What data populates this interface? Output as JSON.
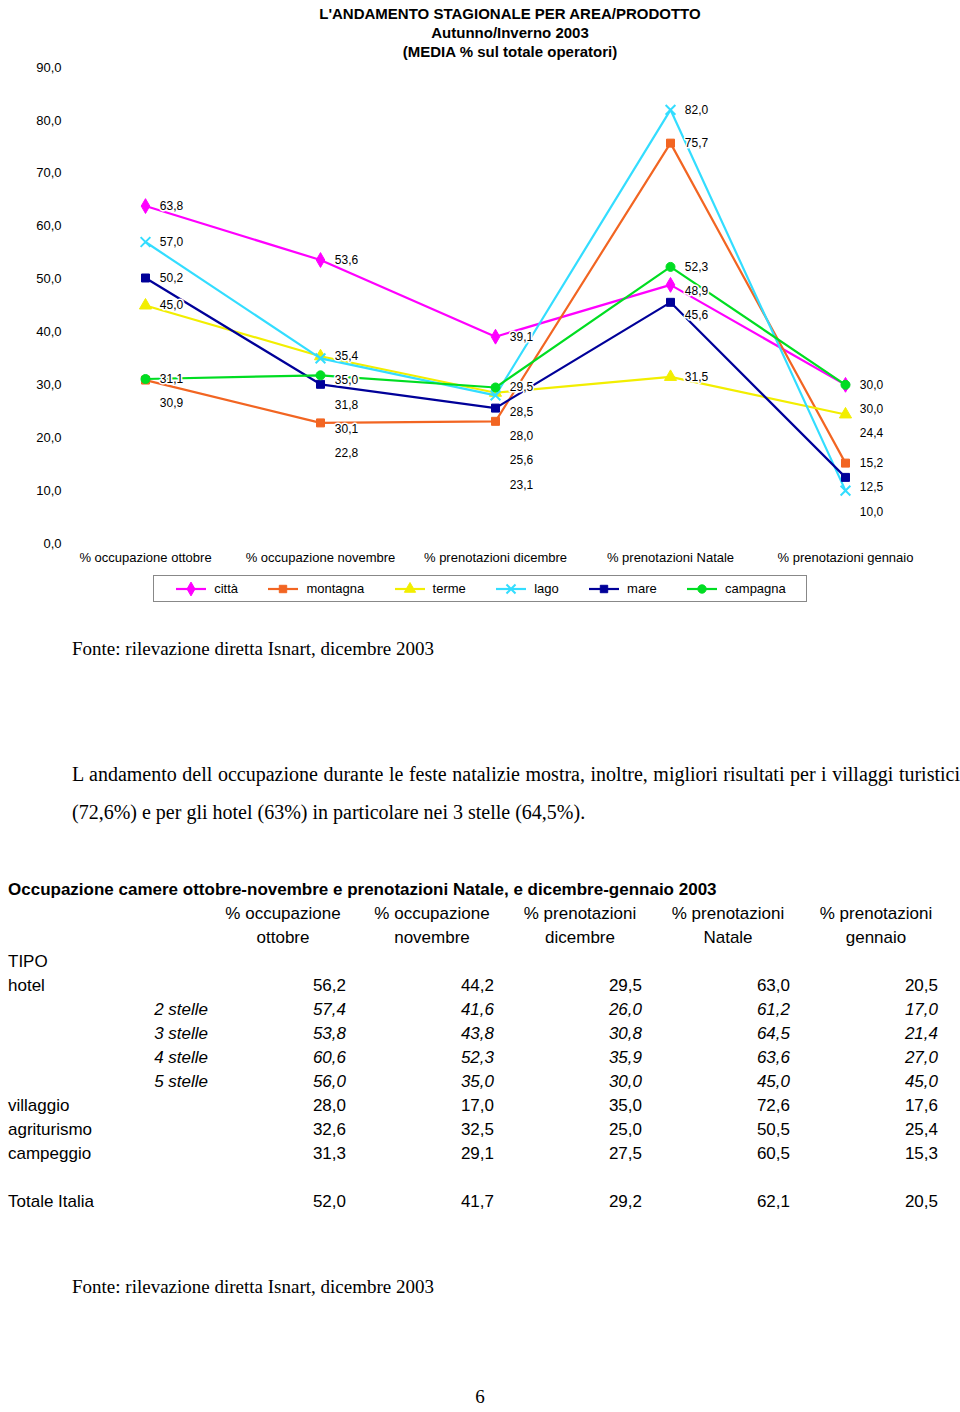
{
  "chart_data": {
    "type": "line",
    "title": "L'ANDAMENTO STAGIONALE PER AREA/PRODOTTO",
    "subtitle": [
      "Autunno/Inverno 2003",
      "(MEDIA % sul totale operatori)"
    ],
    "categories": [
      "% occupazione ottobre",
      "% occupazione novembre",
      "% prenotazioni dicembre",
      "% prenotazioni Natale",
      "% prenotazioni gennaio"
    ],
    "series": [
      {
        "name": "città",
        "color": "#ff00ff",
        "marker": "diamond",
        "values": [
          63.8,
          53.6,
          39.1,
          48.9,
          30.0
        ],
        "value_labels": [
          "63,8",
          "53,6",
          "39,1",
          "48,9",
          "30,0"
        ]
      },
      {
        "name": "montagna",
        "color": "#f26522",
        "marker": "square",
        "values": [
          30.9,
          22.8,
          23.1,
          75.7,
          15.2
        ],
        "value_labels": [
          "30,9",
          "22,8",
          "23,1",
          "75,7",
          "15,2"
        ]
      },
      {
        "name": "terme",
        "color": "#f2ee00",
        "marker": "triangle",
        "values": [
          45.0,
          35.4,
          28.5,
          31.5,
          24.4
        ],
        "value_labels": [
          "45,0",
          "35,4",
          "28,5",
          "31,5",
          "24,4"
        ]
      },
      {
        "name": "lago",
        "color": "#33ddff",
        "marker": "x",
        "values": [
          57.0,
          35.0,
          28.0,
          82.0,
          10.0
        ],
        "value_labels": [
          "57,0",
          "35,0",
          "28,0",
          "82,0",
          "10,0"
        ]
      },
      {
        "name": "mare",
        "color": "#000099",
        "marker": "square",
        "values": [
          50.2,
          30.1,
          25.6,
          45.6,
          12.5
        ],
        "value_labels": [
          "50,2",
          "30,1",
          "25,6",
          "45,6",
          "12,5"
        ]
      },
      {
        "name": "campagna",
        "color": "#00dd22",
        "marker": "circle",
        "values": [
          31.1,
          31.8,
          29.5,
          52.3,
          30.0
        ],
        "value_labels": [
          "31,1",
          "31,8",
          "29,5",
          "52,3",
          "30,0"
        ]
      }
    ],
    "ylim": [
      0,
      90
    ],
    "yticks": [
      {
        "value": 0,
        "label": "0,0"
      },
      {
        "value": 10,
        "label": "10,0"
      },
      {
        "value": 20,
        "label": "20,0"
      },
      {
        "value": 30,
        "label": "30,0"
      },
      {
        "value": 40,
        "label": "40,0"
      },
      {
        "value": 50,
        "label": "50,0"
      },
      {
        "value": 60,
        "label": "60,0"
      },
      {
        "value": 70,
        "label": "70,0"
      },
      {
        "value": 80,
        "label": "80,0"
      },
      {
        "value": 90,
        "label": "90,0"
      }
    ],
    "grid": false,
    "legend": "bottom",
    "data_labels": true
  },
  "document": {
    "chart_source": "Fonte: rilevazione diretta Isnart, dicembre 2003",
    "paragraph": "L andamento dell occupazione durante le feste natalizie mostra, inoltre, migliori risultati per i villaggi turistici (72,6%) e per gli hotel (63%) in particolare nei 3 stelle (64,5%).",
    "table": {
      "title": "Occupazione camere ottobre-novembre e prenotazioni Natale, e dicembre-gennaio 2003",
      "columns": [
        [
          "% occupazione",
          "ottobre"
        ],
        [
          "% occupazione",
          "novembre"
        ],
        [
          "% prenotazioni",
          "dicembre"
        ],
        [
          "% prenotazioni",
          "Natale"
        ],
        [
          "% prenotazioni",
          "gennaio"
        ]
      ],
      "stub_header": "TIPO",
      "rows": [
        {
          "label": "hotel",
          "values": [
            "56,2",
            "44,2",
            "29,5",
            "63,0",
            "20,5"
          ]
        },
        {
          "label": "2 stelle",
          "sub": true,
          "values": [
            "57,4",
            "41,6",
            "26,0",
            "61,2",
            "17,0"
          ]
        },
        {
          "label": "3 stelle",
          "sub": true,
          "values": [
            "53,8",
            "43,8",
            "30,8",
            "64,5",
            "21,4"
          ]
        },
        {
          "label": "4 stelle",
          "sub": true,
          "values": [
            "60,6",
            "52,3",
            "35,9",
            "63,6",
            "27,0"
          ]
        },
        {
          "label": "5 stelle",
          "sub": true,
          "values": [
            "56,0",
            "35,0",
            "30,0",
            "45,0",
            "45,0"
          ]
        },
        {
          "label": "villaggio",
          "values": [
            "28,0",
            "17,0",
            "35,0",
            "72,6",
            "17,6"
          ]
        },
        {
          "label": "agriturismo",
          "values": [
            "32,6",
            "32,5",
            "25,0",
            "50,5",
            "25,4"
          ]
        },
        {
          "label": "campeggio",
          "values": [
            "31,3",
            "29,1",
            "27,5",
            "60,5",
            "15,3"
          ]
        }
      ],
      "total": {
        "label": "Totale Italia",
        "values": [
          "52,0",
          "41,7",
          "29,2",
          "62,1",
          "20,5"
        ]
      }
    },
    "table_source": "Fonte: rilevazione diretta Isnart, dicembre 2003",
    "page": "6"
  }
}
